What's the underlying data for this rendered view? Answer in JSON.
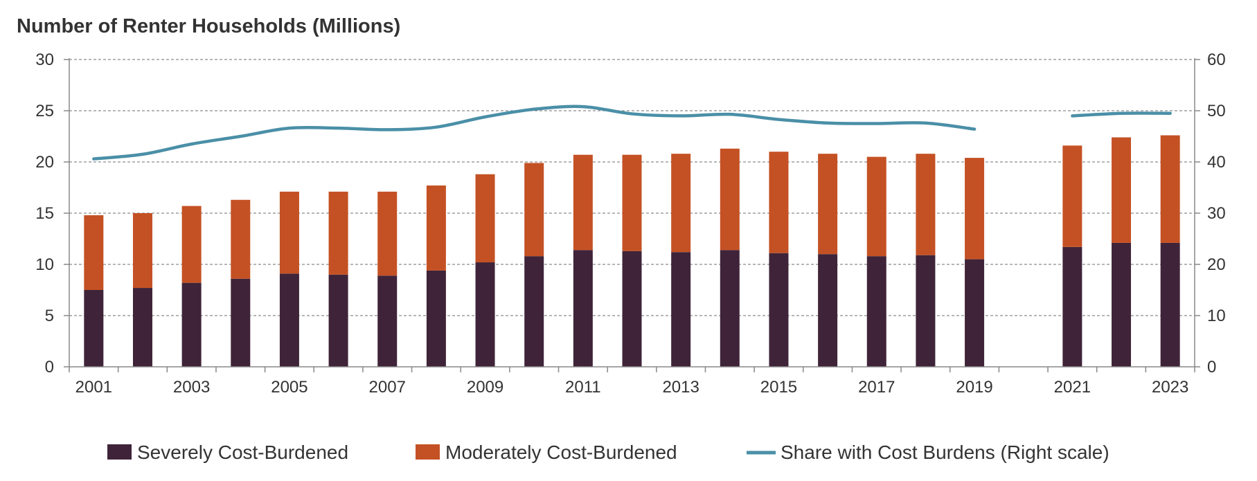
{
  "chart_data": {
    "type": "bar",
    "title": "Number of Renter Households (Millions)",
    "xlabel": "",
    "ylabel": "",
    "ylim": [
      0,
      30
    ],
    "y2lim": [
      0,
      60
    ],
    "yticks": [
      0,
      5,
      10,
      15,
      20,
      25,
      30
    ],
    "y2ticks": [
      0,
      10,
      20,
      30,
      40,
      50,
      60
    ],
    "grid": true,
    "legend_position": "bottom",
    "categories": [
      "2001",
      "2002",
      "2003",
      "2004",
      "2005",
      "2006",
      "2007",
      "2008",
      "2009",
      "2010",
      "2011",
      "2012",
      "2013",
      "2014",
      "2015",
      "2016",
      "2017",
      "2018",
      "2019",
      "2020",
      "2021",
      "2022",
      "2023"
    ],
    "tick_labels": [
      "2001",
      "",
      "2003",
      "",
      "2005",
      "",
      "2007",
      "",
      "2009",
      "",
      "2011",
      "",
      "2013",
      "",
      "2015",
      "",
      "2017",
      "",
      "2019",
      "",
      "2021",
      "",
      "2023"
    ],
    "series": [
      {
        "name": "Severely Cost-Burdened",
        "kind": "bar",
        "color": "#3f2439",
        "values": [
          7.5,
          7.7,
          8.2,
          8.6,
          9.1,
          9.0,
          8.9,
          9.4,
          10.2,
          10.8,
          11.4,
          11.3,
          11.2,
          11.4,
          11.1,
          11.0,
          10.8,
          10.9,
          10.5,
          null,
          11.7,
          12.1,
          12.1
        ]
      },
      {
        "name": "Moderately Cost-Burdened",
        "kind": "bar",
        "color": "#c45124",
        "values": [
          7.3,
          7.3,
          7.5,
          7.7,
          8.0,
          8.1,
          8.2,
          8.3,
          8.6,
          9.1,
          9.3,
          9.4,
          9.6,
          9.9,
          9.9,
          9.8,
          9.7,
          9.9,
          9.9,
          null,
          9.9,
          10.3,
          10.5
        ]
      },
      {
        "name": "Share with Cost Burdens (Right scale)",
        "kind": "line",
        "axis": "right",
        "color": "#4a8fa7",
        "values": [
          40.6,
          41.5,
          43.5,
          45.0,
          46.6,
          46.6,
          46.3,
          46.8,
          48.8,
          50.3,
          50.8,
          49.4,
          49.0,
          49.3,
          48.3,
          47.6,
          47.5,
          47.6,
          46.4,
          null,
          49.0,
          49.5,
          49.5
        ]
      }
    ]
  }
}
